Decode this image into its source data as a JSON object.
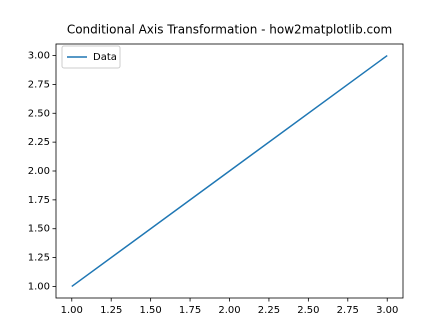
{
  "chart_data": {
    "type": "line",
    "title": "Conditional Axis Transformation - how2matplotlib.com",
    "x": [
      1,
      2,
      3
    ],
    "series": [
      {
        "name": "Data",
        "color": "#1f77b4",
        "values": [
          1,
          2,
          3
        ]
      }
    ],
    "xlim": [
      0.9,
      3.1
    ],
    "ylim": [
      0.9,
      3.1
    ],
    "xticks": [
      {
        "value": 1,
        "label": "1.00"
      },
      {
        "value": 1.25,
        "label": "1.25"
      },
      {
        "value": 1.5,
        "label": "1.50"
      },
      {
        "value": 1.75,
        "label": "1.75"
      },
      {
        "value": 2,
        "label": "2.00"
      },
      {
        "value": 2.25,
        "label": "2.25"
      },
      {
        "value": 2.5,
        "label": "2.50"
      },
      {
        "value": 2.75,
        "label": "2.75"
      },
      {
        "value": 3,
        "label": "3.00"
      }
    ],
    "yticks": [
      {
        "value": 1,
        "label": "1.00"
      },
      {
        "value": 1.25,
        "label": "1.25"
      },
      {
        "value": 1.5,
        "label": "1.50"
      },
      {
        "value": 1.75,
        "label": "1.75"
      },
      {
        "value": 2,
        "label": "2.00"
      },
      {
        "value": 2.25,
        "label": "2.25"
      },
      {
        "value": 2.5,
        "label": "2.50"
      },
      {
        "value": 2.75,
        "label": "2.75"
      },
      {
        "value": 3,
        "label": "3.00"
      }
    ],
    "grid": false,
    "legend": "upper left"
  }
}
